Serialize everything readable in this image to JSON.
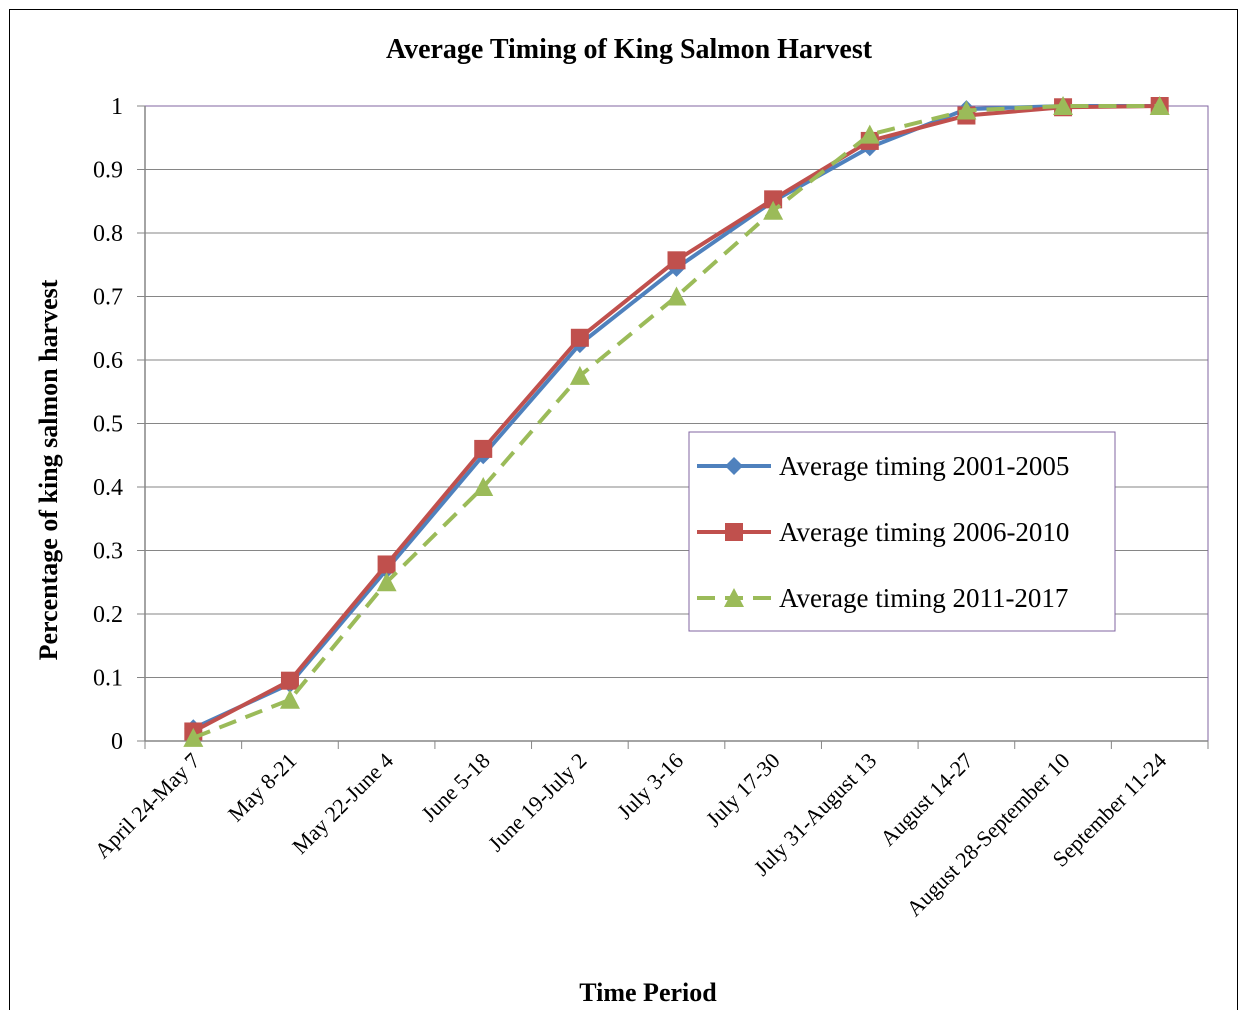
{
  "chart_data": {
    "type": "line",
    "title": "Average Timing of King Salmon Harvest",
    "x_label": "Time Period",
    "y_label": "Percentage of king salmon harvest",
    "categories": [
      "April 24-May 7",
      "May 8-21",
      "May 22-June 4",
      "June 5-18",
      "June 19-July 2",
      "July 3-16",
      "July 17-30",
      "July 31-August 13",
      "August 14-27",
      "August 28-September 10",
      "September 11-24"
    ],
    "series": [
      {
        "name": "Average timing 2001-2005",
        "color": "#4f81bd",
        "marker": "diamond",
        "dashed": false,
        "values": [
          0.02,
          0.09,
          0.27,
          0.45,
          0.625,
          0.745,
          0.85,
          0.935,
          0.995,
          1.0,
          1.0
        ]
      },
      {
        "name": "Average timing 2006-2010",
        "color": "#c0504d",
        "marker": "square",
        "dashed": false,
        "values": [
          0.015,
          0.095,
          0.278,
          0.46,
          0.635,
          0.757,
          0.853,
          0.945,
          0.985,
          0.998,
          1.0
        ]
      },
      {
        "name": "Average timing 2011-2017",
        "color": "#9bbb59",
        "marker": "triangle",
        "dashed": true,
        "values": [
          0.005,
          0.065,
          0.25,
          0.4,
          0.575,
          0.7,
          0.835,
          0.955,
          0.993,
          1.0,
          1.0
        ]
      }
    ],
    "ylim": [
      0,
      1
    ],
    "yticks": [
      0,
      0.1,
      0.2,
      0.3,
      0.4,
      0.5,
      0.6,
      0.7,
      0.8,
      0.9,
      1
    ],
    "grid": true,
    "legend": "right"
  }
}
